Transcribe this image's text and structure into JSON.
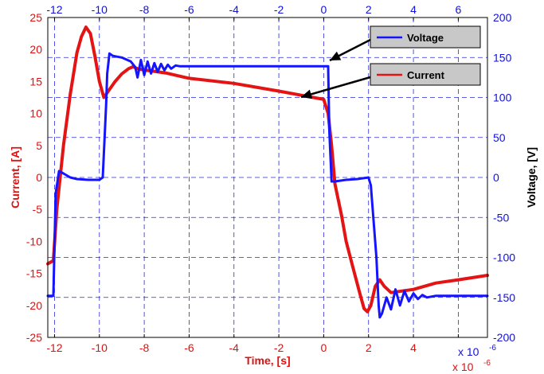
{
  "chart_data": {
    "type": "line",
    "title": "",
    "xlabel": "Time, [s]",
    "x_multiplier_bottom": "x 10",
    "x_multiplier_top": "x 10",
    "x_multiplier_exp": "-6",
    "xlim": [
      -12.3,
      7.3
    ],
    "x_ticks": [
      -12,
      -10,
      -8,
      -6,
      -4,
      -2,
      0,
      2,
      4,
      6
    ],
    "ylabel_left": "Current, [A]",
    "ylim_left": [
      -25,
      25
    ],
    "y_ticks_left": [
      -25,
      -20,
      -15,
      -10,
      -5,
      0,
      5,
      10,
      15,
      20,
      25
    ],
    "ylabel_right": "Voltage, [V]",
    "ylim_right": [
      -200,
      200
    ],
    "y_ticks_right": [
      -200,
      -150,
      -100,
      -50,
      0,
      50,
      100,
      150,
      200
    ],
    "grid": true,
    "legend_placement": "top-right",
    "series": [
      {
        "name": "Voltage",
        "axis": "right",
        "color": "#1414ff",
        "x": [
          -12.3,
          -12.05,
          -11.95,
          -11.8,
          -11.6,
          -11.3,
          -11.0,
          -10.5,
          -10.0,
          -9.85,
          -9.8,
          -9.7,
          -9.65,
          -9.55,
          -9.4,
          -9.0,
          -8.6,
          -8.4,
          -8.3,
          -8.15,
          -8.0,
          -7.85,
          -7.7,
          -7.55,
          -7.4,
          -7.25,
          -7.1,
          -6.95,
          -6.8,
          -6.6,
          -6.4,
          -6.0,
          -4.0,
          -2.0,
          0.0,
          0.2,
          0.25,
          0.35,
          0.5,
          1.0,
          1.5,
          2.0,
          2.1,
          2.35,
          2.45,
          2.5,
          2.6,
          2.8,
          3.0,
          3.2,
          3.4,
          3.6,
          3.8,
          4.0,
          4.2,
          4.4,
          4.6,
          5.0,
          6.0,
          7.3
        ],
        "y": [
          -148,
          -148,
          -20,
          8,
          5,
          0,
          -2,
          -3,
          -3,
          0,
          30,
          90,
          130,
          155,
          152,
          150,
          145,
          138,
          125,
          147,
          128,
          145,
          130,
          143,
          132,
          142,
          134,
          141,
          136,
          140,
          139,
          139,
          139,
          139,
          139,
          139,
          60,
          -5,
          -5,
          -3,
          -2,
          0,
          -10,
          -100,
          -160,
          -175,
          -170,
          -150,
          -165,
          -140,
          -160,
          -142,
          -155,
          -145,
          -152,
          -147,
          -150,
          -148,
          -148,
          -148
        ]
      },
      {
        "name": "Current",
        "axis": "left",
        "color": "#e41414",
        "x": [
          -12.3,
          -12.05,
          -11.9,
          -11.6,
          -11.3,
          -11.0,
          -10.8,
          -10.6,
          -10.4,
          -10.2,
          -10.0,
          -9.8,
          -9.6,
          -9.3,
          -9.0,
          -8.7,
          -8.5,
          -8.3,
          -8.0,
          -7.0,
          -6.0,
          -4.0,
          -2.0,
          0.0,
          0.2,
          0.35,
          0.5,
          0.8,
          1.0,
          1.3,
          1.6,
          1.8,
          1.95,
          2.1,
          2.3,
          2.5,
          2.7,
          3.0,
          4.0,
          5.0,
          6.0,
          7.3
        ],
        "y": [
          -13.5,
          -13.0,
          -5,
          5,
          13,
          19.5,
          22,
          23.5,
          22.5,
          19,
          15,
          12.5,
          13.5,
          15,
          16.2,
          17,
          17.3,
          17,
          16.8,
          16.3,
          15.5,
          14.7,
          13.5,
          12.2,
          10,
          5,
          -1,
          -6,
          -10,
          -14,
          -18,
          -20.5,
          -21,
          -20,
          -17,
          -16,
          -17,
          -18,
          -17.5,
          -16.5,
          -16,
          -15.3
        ]
      }
    ]
  }
}
